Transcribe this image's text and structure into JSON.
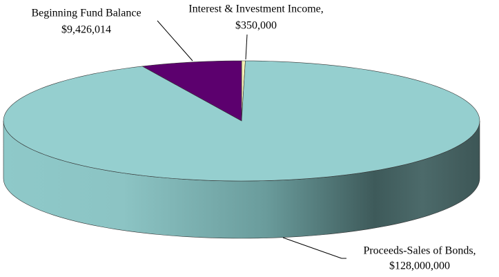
{
  "chart_data": {
    "type": "pie3d",
    "categories": [
      "Interest & Investment Income,",
      "Proceeds-Sales of Bonds,",
      "Beginning Fund Balance"
    ],
    "values": [
      350000,
      128000000,
      9426014
    ],
    "value_labels": [
      "$350,000",
      "$128,000,000",
      "$9,426,014"
    ],
    "colors": [
      "#f4efb4",
      "#95cfcf",
      "#5c006e"
    ]
  }
}
